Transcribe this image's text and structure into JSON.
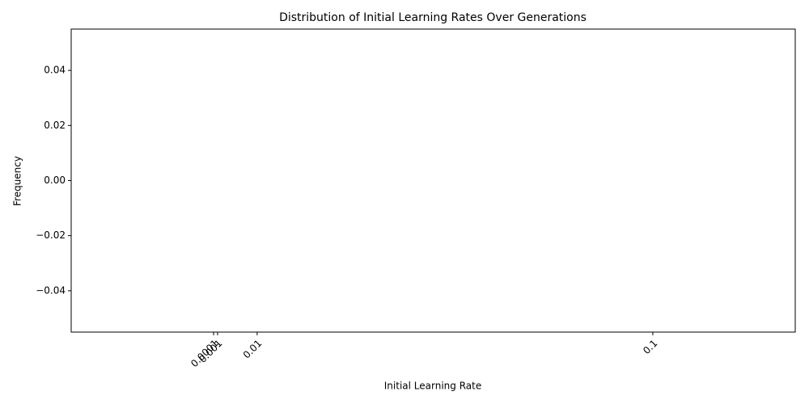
{
  "chart_data": {
    "type": "histogram",
    "title": "Distribution of Initial Learning Rates Over Generations",
    "x_label": "Initial Learning Rate",
    "y_label": "Frequency",
    "xlim": [
      -0.0323,
      0.1324
    ],
    "xticks": [
      0.0001,
      0.001,
      0.01,
      0.1
    ],
    "ylim": [
      -0.055,
      0.055
    ],
    "yticks": [
      {
        "value": -0.04,
        "label": "−0.04"
      },
      {
        "value": -0.02,
        "label": "−0.02"
      },
      {
        "value": 0,
        "label": "0.00"
      },
      0.02,
      0.04
    ],
    "grid": false
  }
}
